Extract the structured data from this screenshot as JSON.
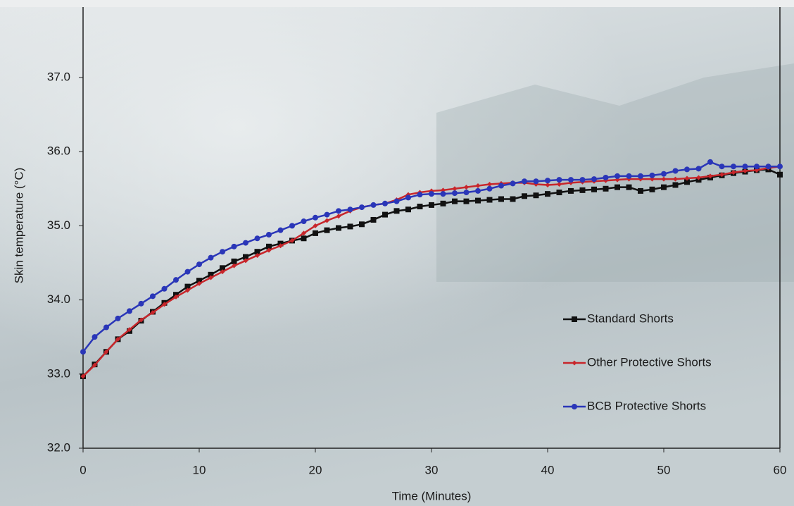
{
  "chart_data": {
    "type": "line",
    "x_label": "Time (Minutes)",
    "y_label": "Skin temperature (°C)",
    "x": [
      0,
      1,
      2,
      3,
      4,
      5,
      6,
      7,
      8,
      9,
      10,
      11,
      12,
      13,
      14,
      15,
      16,
      17,
      18,
      19,
      20,
      21,
      22,
      23,
      24,
      25,
      26,
      27,
      28,
      29,
      30,
      31,
      32,
      33,
      34,
      35,
      36,
      37,
      38,
      39,
      40,
      41,
      42,
      43,
      44,
      45,
      46,
      47,
      48,
      49,
      50,
      51,
      52,
      53,
      54,
      55,
      56,
      57,
      58,
      59,
      60
    ],
    "series": [
      {
        "name": "Standard Shorts",
        "color": "#111111",
        "marker": "square",
        "values": [
          32.97,
          33.13,
          33.3,
          33.47,
          33.58,
          33.72,
          33.84,
          33.96,
          34.07,
          34.18,
          34.26,
          34.34,
          34.43,
          34.52,
          34.58,
          34.65,
          34.72,
          34.76,
          34.8,
          34.83,
          34.9,
          34.94,
          34.97,
          34.99,
          35.02,
          35.08,
          35.15,
          35.2,
          35.22,
          35.26,
          35.28,
          35.3,
          35.33,
          35.33,
          35.34,
          35.35,
          35.36,
          35.36,
          35.4,
          35.41,
          35.43,
          35.45,
          35.47,
          35.48,
          35.49,
          35.5,
          35.52,
          35.52,
          35.47,
          35.49,
          35.52,
          35.55,
          35.59,
          35.62,
          35.65,
          35.68,
          35.71,
          35.73,
          35.75,
          35.76,
          35.69
        ]
      },
      {
        "name": "Other Protective Shorts",
        "color": "#c8262b",
        "marker": "diamond",
        "values": [
          32.97,
          33.12,
          33.3,
          33.47,
          33.6,
          33.73,
          33.83,
          33.94,
          34.04,
          34.13,
          34.22,
          34.3,
          34.38,
          34.46,
          34.53,
          34.6,
          34.67,
          34.73,
          34.8,
          34.9,
          35.0,
          35.07,
          35.13,
          35.2,
          35.25,
          35.28,
          35.3,
          35.35,
          35.42,
          35.45,
          35.47,
          35.48,
          35.5,
          35.52,
          35.54,
          35.56,
          35.57,
          35.58,
          35.58,
          35.56,
          35.55,
          35.56,
          35.58,
          35.59,
          35.6,
          35.61,
          35.62,
          35.63,
          35.63,
          35.63,
          35.63,
          35.63,
          35.64,
          35.65,
          35.67,
          35.69,
          35.72,
          35.74,
          35.75,
          35.78,
          35.8
        ]
      },
      {
        "name": "BCB Protective Shorts",
        "color": "#2a36b8",
        "marker": "circle",
        "values": [
          33.3,
          33.5,
          33.63,
          33.75,
          33.85,
          33.95,
          34.05,
          34.15,
          34.27,
          34.38,
          34.48,
          34.57,
          34.65,
          34.72,
          34.77,
          34.83,
          34.88,
          34.94,
          35.0,
          35.06,
          35.11,
          35.15,
          35.2,
          35.22,
          35.25,
          35.28,
          35.3,
          35.33,
          35.38,
          35.42,
          35.43,
          35.43,
          35.44,
          35.45,
          35.47,
          35.5,
          35.54,
          35.57,
          35.6,
          35.6,
          35.61,
          35.62,
          35.62,
          35.62,
          35.63,
          35.65,
          35.67,
          35.67,
          35.67,
          35.68,
          35.7,
          35.74,
          35.76,
          35.77,
          35.86,
          35.8,
          35.8,
          35.8,
          35.8,
          35.8,
          35.8
        ]
      }
    ],
    "xlim": [
      0,
      60
    ],
    "xticks": [
      0,
      10,
      20,
      30,
      40,
      50,
      60
    ],
    "ylim": [
      32,
      37.95
    ],
    "yticks": [
      {
        "value": 32,
        "label": "32.0"
      },
      {
        "value": 33,
        "label": "33.0"
      },
      {
        "value": 34,
        "label": "34.0"
      },
      {
        "value": 35,
        "label": "35.0"
      },
      {
        "value": 36,
        "label": "36.0"
      },
      {
        "value": 37,
        "label": "37.0"
      }
    ],
    "legend": "right"
  }
}
